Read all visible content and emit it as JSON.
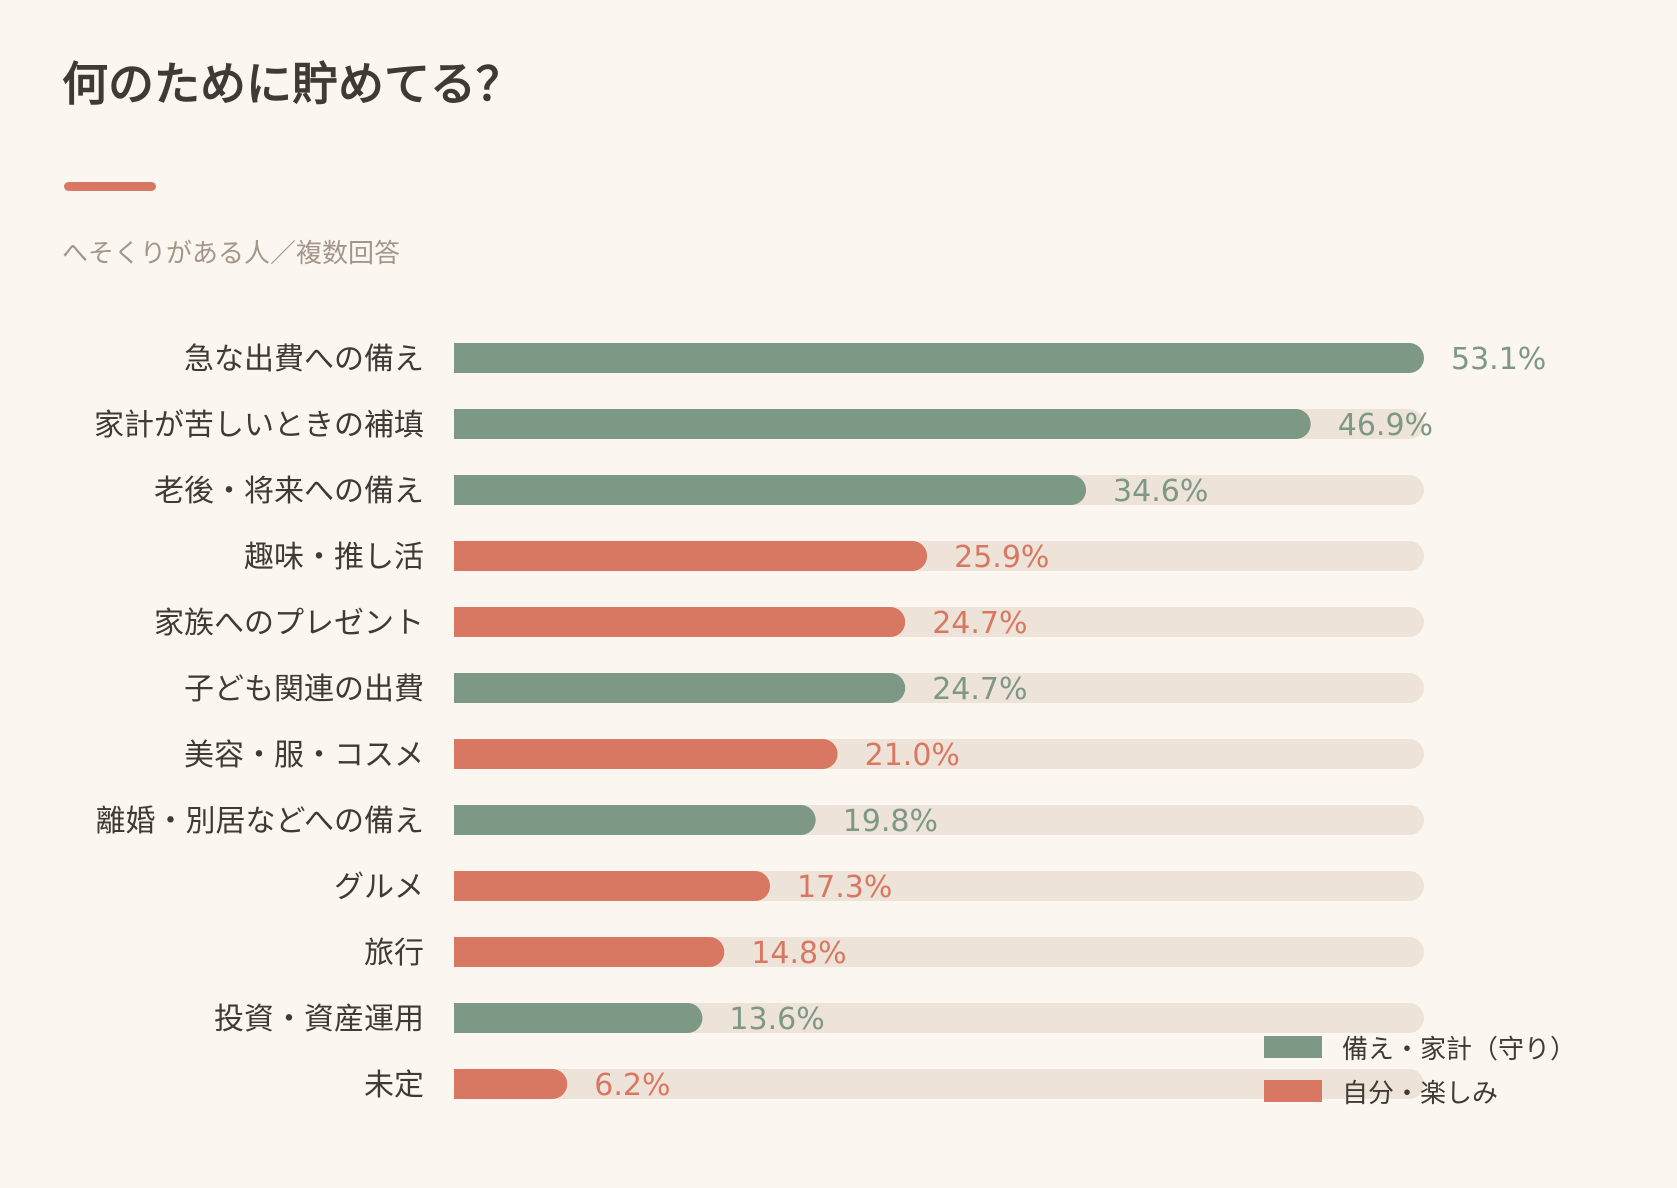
{
  "colors": {
    "defense": "#7d9885",
    "enjoy": "#d97862",
    "track": "#ede3d8",
    "accent": "#d97862"
  },
  "chart_data": {
    "type": "bar",
    "orientation": "horizontal",
    "title": "何のために貯めてる？",
    "subtitle": "へそくりがある人／複数回答",
    "xlim": [
      0,
      53.1
    ],
    "unit": "%",
    "legend_position": "bottom-right",
    "legend": [
      {
        "key": "defense",
        "name": "備え・家計（守り）"
      },
      {
        "key": "enjoy",
        "name": "自分・楽しみ"
      }
    ],
    "categories": [
      "急な出費への備え",
      "家計が苦しいときの補填",
      "老後・将来への備え",
      "趣味・推し活",
      "家族へのプレゼント",
      "子ども関連の出費",
      "美容・服・コスメ",
      "離婚・別居などへの備え",
      "グルメ",
      "旅行",
      "投資・資産運用",
      "未定"
    ],
    "values": [
      53.1,
      46.9,
      34.6,
      25.9,
      24.7,
      24.7,
      21.0,
      19.8,
      17.3,
      14.8,
      13.6,
      6.2
    ],
    "value_labels": [
      "53.1%",
      "46.9%",
      "34.6%",
      "25.9%",
      "24.7%",
      "24.7%",
      "21.0%",
      "19.8%",
      "17.3%",
      "14.8%",
      "13.6%",
      "6.2%"
    ],
    "groups": [
      "defense",
      "defense",
      "defense",
      "enjoy",
      "enjoy",
      "defense",
      "enjoy",
      "defense",
      "enjoy",
      "enjoy",
      "defense",
      "enjoy"
    ]
  }
}
